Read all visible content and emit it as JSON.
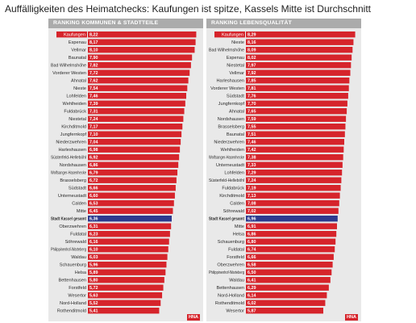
{
  "page": {
    "title": "Auffälligkeiten des Heimatchecks: Kaufungen ist spitze, Kassels Mitte ist Durchschnitt"
  },
  "panels": [
    {
      "logo": "HNA"
    },
    {
      "logo": "HNA"
    }
  ],
  "colors": {
    "bar": "#d6242b",
    "highlight_bar": "#2e3b8e",
    "rank1_label_bg": "#d6242b",
    "panel_bg": "#e9e9e9",
    "header_bg": "#ababab"
  },
  "chart_data": [
    {
      "type": "bar",
      "orientation": "horizontal",
      "title": "RANKING KOMMUNEN & STADTTEILE",
      "highlight_category": "Stadt Kassel gesamt",
      "xlim": [
        0,
        8.5
      ],
      "categories": [
        "Kaufungen",
        "Espenau",
        "Vellmar",
        "Baunatal",
        "Bad Wilhelmshöhe",
        "Vorderer Westen",
        "Ahnatal",
        "Nieste",
        "Lohfelden",
        "Wehlheiden",
        "Fuldabrück",
        "Niestetal",
        "Kirchditmold",
        "Jungfernkopf",
        "Niederzwehren",
        "Harleshausen",
        "Süsterfeld-Helleböhl",
        "Nordshausen",
        "Wolfsanger-Hasenhecke",
        "Brasselsberg",
        "Südstadt",
        "Unterneustadt",
        "Calden",
        "Mitte",
        "Stadt Kassel gesamt",
        "Oberzwehren",
        "Fuldatal",
        "Söhrewald",
        "Philippinenhof-Warteberg",
        "Waldau",
        "Schauenburg",
        "Helsa",
        "Bettenhausen",
        "Forstfeld",
        "Wesertor",
        "Nord-Holland",
        "Rothenditmold"
      ],
      "values": [
        8.22,
        8.17,
        8.1,
        7.9,
        7.82,
        7.72,
        7.62,
        7.54,
        7.46,
        7.39,
        7.31,
        7.24,
        7.17,
        7.1,
        7.04,
        6.98,
        6.92,
        6.86,
        6.79,
        6.72,
        6.66,
        6.6,
        6.53,
        6.45,
        6.36,
        6.31,
        6.23,
        6.16,
        6.1,
        6.03,
        5.96,
        5.89,
        5.8,
        5.72,
        5.63,
        5.52,
        5.41
      ],
      "value_labels": [
        "8,22",
        "8,17",
        "8,10",
        "7,90",
        "7,82",
        "7,72",
        "7,62",
        "7,54",
        "7,46",
        "7,39",
        "7,31",
        "7,24",
        "7,17",
        "7,10",
        "7,04",
        "6,98",
        "6,92",
        "6,86",
        "6,79",
        "6,72",
        "6,66",
        "6,60",
        "6,53",
        "6,45",
        "6,36",
        "6,31",
        "6,23",
        "6,16",
        "6,10",
        "6,03",
        "5,96",
        "5,89",
        "5,80",
        "5,72",
        "5,63",
        "5,52",
        "5,41"
      ]
    },
    {
      "type": "bar",
      "orientation": "horizontal",
      "title": "RANKING LEBENSQUALITÄT",
      "highlight_category": "Stadt Kassel gesamt",
      "xlim": [
        0,
        8.5
      ],
      "categories": [
        "Kaufungen",
        "Nieste",
        "Bad Wilhelmshöhe",
        "Espenau",
        "Niestetal",
        "Vellmar",
        "Harleshausen",
        "Vorderer Westen",
        "Südstadt",
        "Jungfernkopf",
        "Ahnatal",
        "Nordshausen",
        "Brasselsberg",
        "Baunatal",
        "Niederzwehren",
        "Wehlheiden",
        "Wolfsanger-Hasenhecke",
        "Unterneustadt",
        "Lohfelden",
        "Süsterfeld-Helleböhl",
        "Fuldabrück",
        "Kirchditmold",
        "Calden",
        "Söhrewald",
        "Stadt Kassel gesamt",
        "Mitte",
        "Helsa",
        "Schauenburg",
        "Fuldatal",
        "Forstfeld",
        "Oberzwehren",
        "Philippinenhof-Warteberg",
        "Waldau",
        "Bettenhausen",
        "Nord-Holland",
        "Rothenditmold",
        "Wesertor"
      ],
      "values": [
        8.29,
        8.16,
        8.09,
        8.02,
        7.97,
        7.92,
        7.85,
        7.81,
        7.76,
        7.7,
        7.65,
        7.59,
        7.55,
        7.51,
        7.46,
        7.42,
        7.38,
        7.33,
        7.29,
        7.24,
        7.19,
        7.13,
        7.08,
        7.02,
        6.96,
        6.91,
        6.86,
        6.8,
        6.74,
        6.66,
        6.58,
        6.5,
        6.41,
        6.29,
        6.14,
        6.02,
        5.87
      ],
      "value_labels": [
        "8,29",
        "8,16",
        "8,09",
        "8,02",
        "7,97",
        "7,92",
        "7,85",
        "7,81",
        "7,76",
        "7,70",
        "7,65",
        "7,59",
        "7,55",
        "7,51",
        "7,46",
        "7,42",
        "7,38",
        "7,33",
        "7,29",
        "7,24",
        "7,19",
        "7,13",
        "7,08",
        "7,02",
        "6,96",
        "6,91",
        "6,86",
        "6,80",
        "6,74",
        "6,66",
        "6,58",
        "6,50",
        "6,41",
        "6,29",
        "6,14",
        "6,02",
        "5,87"
      ]
    }
  ]
}
